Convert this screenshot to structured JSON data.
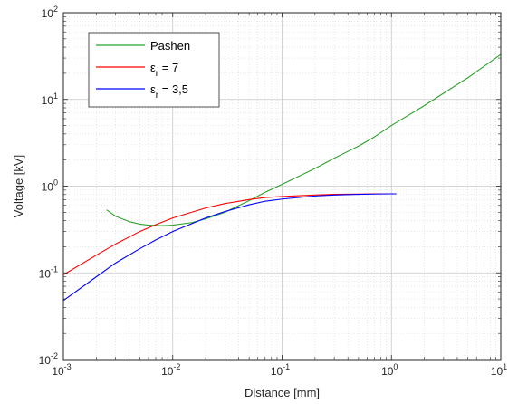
{
  "chart_data": {
    "type": "line",
    "title": "",
    "xlabel": "Distance [mm]",
    "ylabel": "Voltage [kV]",
    "xscale": "log",
    "yscale": "log",
    "xlim": [
      0.001,
      10
    ],
    "ylim": [
      0.01,
      100
    ],
    "grid": true,
    "minor_grid": true,
    "legend_position": "top-left",
    "x_ticks": [
      {
        "base": "10",
        "exp": "-3"
      },
      {
        "base": "10",
        "exp": "-2"
      },
      {
        "base": "10",
        "exp": "-1"
      },
      {
        "base": "10",
        "exp": "0"
      },
      {
        "base": "10",
        "exp": "1"
      }
    ],
    "y_ticks": [
      {
        "base": "10",
        "exp": "-2"
      },
      {
        "base": "10",
        "exp": "-1"
      },
      {
        "base": "10",
        "exp": "0"
      },
      {
        "base": "10",
        "exp": "1"
      },
      {
        "base": "10",
        "exp": "2"
      }
    ],
    "series": [
      {
        "name": "Pashen",
        "legend": {
          "main": "Pashen",
          "sub": "",
          "tail": ""
        },
        "color": "#2ca02c",
        "x": [
          0.0025,
          0.003,
          0.004,
          0.005,
          0.006,
          0.008,
          0.01,
          0.015,
          0.02,
          0.03,
          0.05,
          0.07,
          0.1,
          0.2,
          0.3,
          0.5,
          0.7,
          1.0,
          2.0,
          3.0,
          5.0,
          7.0,
          10.0
        ],
        "y": [
          0.53,
          0.45,
          0.39,
          0.365,
          0.355,
          0.35,
          0.355,
          0.38,
          0.42,
          0.5,
          0.68,
          0.85,
          1.05,
          1.6,
          2.1,
          2.9,
          3.7,
          5.0,
          8.5,
          11.8,
          17.8,
          24.0,
          33.0
        ]
      },
      {
        "name": "ε_r = 7",
        "legend": {
          "main": "ε",
          "sub": "r",
          "tail": " = 7"
        },
        "color": "#ff0000",
        "x": [
          0.001,
          0.002,
          0.003,
          0.005,
          0.007,
          0.01,
          0.02,
          0.03,
          0.05,
          0.07,
          0.1,
          0.2,
          0.3,
          0.5,
          0.7,
          1.0,
          1.1
        ],
        "y": [
          0.095,
          0.16,
          0.215,
          0.3,
          0.36,
          0.43,
          0.56,
          0.63,
          0.7,
          0.74,
          0.76,
          0.79,
          0.805,
          0.81,
          0.815,
          0.815,
          0.815
        ]
      },
      {
        "name": "ε_r = 3,5",
        "legend": {
          "main": "ε",
          "sub": "r",
          "tail": " = 3,5"
        },
        "color": "#0000ff",
        "x": [
          0.001,
          0.002,
          0.003,
          0.005,
          0.007,
          0.01,
          0.02,
          0.03,
          0.05,
          0.07,
          0.1,
          0.2,
          0.3,
          0.5,
          0.7,
          1.0,
          1.1
        ],
        "y": [
          0.048,
          0.09,
          0.13,
          0.19,
          0.24,
          0.3,
          0.43,
          0.51,
          0.61,
          0.67,
          0.71,
          0.77,
          0.79,
          0.805,
          0.81,
          0.815,
          0.815
        ]
      }
    ]
  }
}
